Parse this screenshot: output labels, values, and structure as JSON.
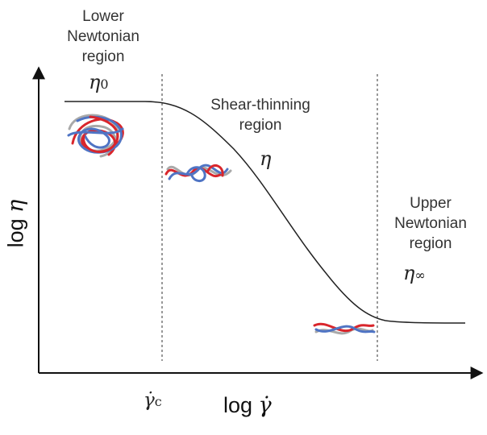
{
  "regions": {
    "lower": {
      "line1": "Lower",
      "line2": "Newtonian",
      "line3": "region",
      "symbol": "η",
      "subscript": "0"
    },
    "middle": {
      "line1": "Shear-thinning",
      "line2": "region",
      "symbol": "η"
    },
    "upper": {
      "line1": "Upper",
      "line2": "Newtonian",
      "line3": "region",
      "symbol": "η",
      "subscript": "∞"
    }
  },
  "axes": {
    "y_label_prefix": "log",
    "y_symbol": "η",
    "x_label_prefix": "log",
    "x_symbol": "γ̇",
    "critical_symbol": "γ̇",
    "critical_subscript": "c"
  },
  "colors": {
    "red": "#d9262c",
    "blue": "#4f74c4",
    "gray": "#a9a9a9",
    "curve": "#222222"
  }
}
